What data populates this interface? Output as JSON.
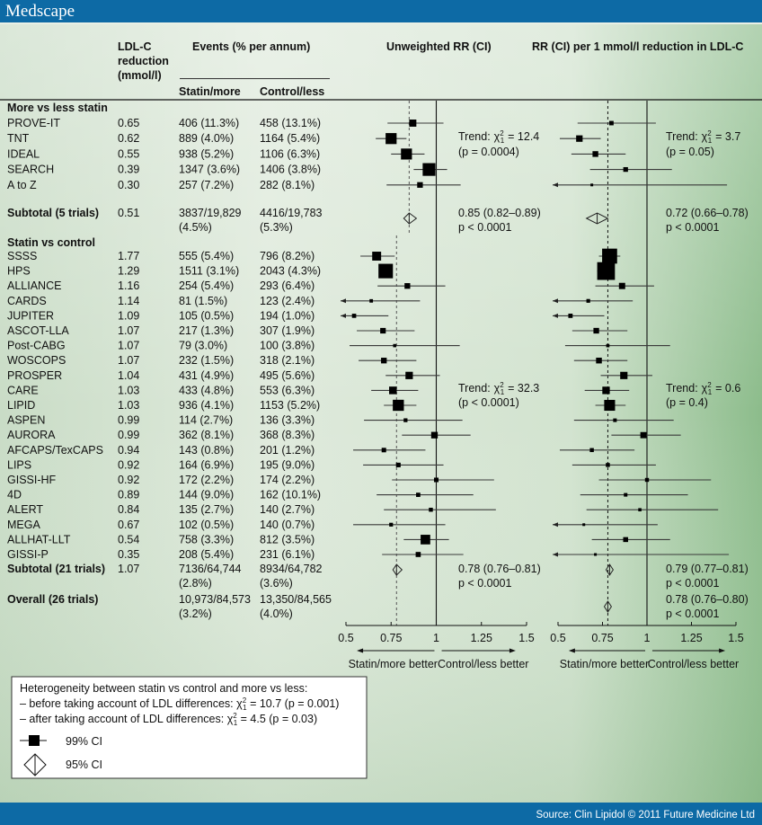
{
  "header": {
    "brand": "Medscape"
  },
  "footer": {
    "source": "Source: Clin Lipidol © 2011 Future Medicine Ltd"
  },
  "colors": {
    "brand_bar": "#0d6aa5",
    "background_light": "#e2ecdf",
    "background_dark": "#8fbd8e",
    "marker": "#000000"
  },
  "columns": {
    "ldl_line1": "LDL-C",
    "ldl_line2": "reduction",
    "ldl_line3": "(mmol/l)",
    "events": "Events (% per annum)",
    "statin": "Statin/more",
    "control": "Control/less",
    "unweighted": "Unweighted RR (CI)",
    "per_mmol": "RR (CI) per 1 mmol/l reduction in LDL-C"
  },
  "chart_data": {
    "type": "forest",
    "xlim": [
      0.5,
      1.5
    ],
    "ticks": [
      "0.5",
      "0.75",
      "1",
      "1.25",
      "1.5"
    ],
    "xlabel_left": "Statin/more better",
    "xlabel_right": "Control/less better",
    "reference_lines": {
      "null": 1,
      "unweighted_more_vs_less": 0.85,
      "unweighted_statin_vs_control": 0.78,
      "per_mmol_overall": 0.78
    },
    "groups": [
      {
        "title": "More vs less statin",
        "trials": [
          {
            "name": "PROVE-IT",
            "ldl": "0.65",
            "statin": "406 (11.3%)",
            "control": "458 (13.1%)",
            "rr": [
              0.87,
              0.73,
              1.04
            ],
            "rr_per_mmol": [
              0.8,
              0.61,
              1.05
            ]
          },
          {
            "name": "TNT",
            "ldl": "0.62",
            "statin": "889 (4.0%)",
            "control": "1164 (5.4%)",
            "rr": [
              0.75,
              0.665,
              0.835
            ],
            "rr_per_mmol": [
              0.62,
              0.51,
              0.74
            ]
          },
          {
            "name": "IDEAL",
            "ldl": "0.55",
            "statin": "938 (5.2%)",
            "control": "1106 (6.3%)",
            "rr": [
              0.835,
              0.75,
              0.935
            ],
            "rr_per_mmol": [
              0.71,
              0.575,
              0.88
            ]
          },
          {
            "name": "SEARCH",
            "ldl": "0.39",
            "statin": "1347 (3.6%)",
            "control": "1406 (3.8%)",
            "rr": [
              0.96,
              0.875,
              1.06
            ],
            "rr_per_mmol": [
              0.88,
              0.68,
              1.14
            ]
          },
          {
            "name": "A to Z",
            "ldl": "0.30",
            "statin": "257 (7.2%)",
            "control": "282 (8.1%)",
            "rr": [
              0.91,
              0.725,
              1.135
            ],
            "rr_per_mmol": [
              0.69,
              "<0.5",
              1.45
            ]
          }
        ],
        "trend": {
          "unweighted": {
            "label": "Trend:",
            "symbol": "χ",
            "power": "2",
            "df": "1",
            "value": "= 12.4",
            "p": "(p = 0.0004)"
          },
          "per_mmol": {
            "label": "Trend:",
            "symbol": "χ",
            "power": "2",
            "df": "1",
            "value": "= 3.7",
            "p": "(p = 0.05)"
          }
        },
        "subtotal": {
          "name": "Subtotal (5 trials)",
          "ldl": "0.51",
          "statin": "3837/19,829",
          "statin_pct": "(4.5%)",
          "control": "4416/19,783",
          "control_pct": "(5.3%)",
          "rr": [
            0.85,
            0.82,
            0.89
          ],
          "rr_text": "0.85 (0.82–0.89)",
          "rr_p": "p < 0.0001",
          "rr_per_mmol": [
            0.72,
            0.66,
            0.78
          ],
          "rr_per_mmol_text": "0.72 (0.66–0.78)",
          "rr_per_mmol_p": "p < 0.0001"
        }
      },
      {
        "title": "Statin vs control",
        "trials": [
          {
            "name": "SSSS",
            "ldl": "1.77",
            "statin": "555 (5.4%)",
            "control": "796 (8.2%)",
            "rr": [
              0.67,
              0.58,
              0.77
            ],
            "rr_per_mmol": [
              0.79,
              0.73,
              0.85
            ]
          },
          {
            "name": "HPS",
            "ldl": "1.29",
            "statin": "1511 (3.1%)",
            "control": "2043 (4.3%)",
            "rr": [
              0.72,
              0.687,
              0.753
            ],
            "rr_per_mmol": [
              0.77,
              0.72,
              0.81
            ]
          },
          {
            "name": "ALLIANCE",
            "ldl": "1.16",
            "statin": "254 (5.4%)",
            "control": "293 (6.4%)",
            "rr": [
              0.84,
              0.675,
              1.05
            ],
            "rr_per_mmol": [
              0.86,
              0.71,
              1.04
            ]
          },
          {
            "name": "CARDS",
            "ldl": "1.14",
            "statin": "81 (1.5%)",
            "control": "123 (2.4%)",
            "rr": [
              0.64,
              "<0.5",
              0.91
            ],
            "rr_per_mmol": [
              0.67,
              "<0.5",
              0.92
            ]
          },
          {
            "name": "JUPITER",
            "ldl": "1.09",
            "statin": "105 (0.5%)",
            "control": "194 (1.0%)",
            "rr": [
              0.545,
              "<0.5",
              0.735
            ],
            "rr_per_mmol": [
              0.57,
              "<0.5",
              0.76
            ]
          },
          {
            "name": "ASCOT-LLA",
            "ldl": "1.07",
            "statin": "217 (1.3%)",
            "control": "307 (1.9%)",
            "rr": [
              0.705,
              0.56,
              0.88
            ],
            "rr_per_mmol": [
              0.715,
              0.58,
              0.89
            ]
          },
          {
            "name": "Post-CABG",
            "ldl": "1.07",
            "statin": "79 (3.0%)",
            "control": "100 (3.8%)",
            "rr": [
              0.77,
              0.52,
              1.13
            ],
            "rr_per_mmol": [
              0.78,
              0.54,
              1.13
            ]
          },
          {
            "name": "WOSCOPS",
            "ldl": "1.07",
            "statin": "232 (1.5%)",
            "control": "318 (2.1%)",
            "rr": [
              0.71,
              0.57,
              0.89
            ],
            "rr_per_mmol": [
              0.73,
              0.59,
              0.89
            ]
          },
          {
            "name": "PROSPER",
            "ldl": "1.04",
            "statin": "431 (4.9%)",
            "control": "495 (5.6%)",
            "rr": [
              0.85,
              0.72,
              1.02
            ],
            "rr_per_mmol": [
              0.87,
              0.74,
              1.03
            ]
          },
          {
            "name": "CARE",
            "ldl": "1.03",
            "statin": "433 (4.8%)",
            "control": "553 (6.3%)",
            "rr": [
              0.76,
              0.64,
              0.9
            ],
            "rr_per_mmol": [
              0.77,
              0.65,
              0.9
            ]
          },
          {
            "name": "LIPID",
            "ldl": "1.03",
            "statin": "936 (4.1%)",
            "control": "1153 (5.2%)",
            "rr": [
              0.79,
              0.71,
              0.89
            ],
            "rr_per_mmol": [
              0.79,
              0.71,
              0.88
            ]
          },
          {
            "name": "ASPEN",
            "ldl": "0.99",
            "statin": "114 (2.7%)",
            "control": "136 (3.3%)",
            "rr": [
              0.83,
              0.6,
              1.145
            ],
            "rr_per_mmol": [
              0.82,
              0.59,
              1.15
            ]
          },
          {
            "name": "AURORA",
            "ldl": "0.99",
            "statin": "362 (8.1%)",
            "control": "368 (8.3%)",
            "rr": [
              0.99,
              0.81,
              1.19
            ],
            "rr_per_mmol": [
              0.98,
              0.8,
              1.19
            ]
          },
          {
            "name": "AFCAPS/TexCAPS",
            "ldl": "0.94",
            "statin": "143 (0.8%)",
            "control": "201 (1.2%)",
            "rr": [
              0.71,
              0.54,
              0.94
            ],
            "rr_per_mmol": [
              0.69,
              0.51,
              0.93
            ]
          },
          {
            "name": "LIPS",
            "ldl": "0.92",
            "statin": "164 (6.9%)",
            "control": "195 (9.0%)",
            "rr": [
              0.79,
              0.595,
              1.04
            ],
            "rr_per_mmol": [
              0.78,
              0.58,
              1.05
            ]
          },
          {
            "name": "GISSI-HF",
            "ldl": "0.92",
            "statin": "172 (2.2%)",
            "control": "174 (2.2%)",
            "rr": [
              1.0,
              0.755,
              1.32
            ],
            "rr_per_mmol": [
              1.0,
              0.73,
              1.36
            ]
          },
          {
            "name": "4D",
            "ldl": "0.89",
            "statin": "144 (9.0%)",
            "control": "162 (10.1%)",
            "rr": [
              0.9,
              0.67,
              1.205
            ],
            "rr_per_mmol": [
              0.88,
              0.625,
              1.23
            ]
          },
          {
            "name": "ALERT",
            "ldl": "0.84",
            "statin": "135 (2.7%)",
            "control": "140 (2.7%)",
            "rr": [
              0.97,
              0.71,
              1.33
            ],
            "rr_per_mmol": [
              0.96,
              0.66,
              1.4
            ]
          },
          {
            "name": "MEGA",
            "ldl": "0.67",
            "statin": "102 (0.5%)",
            "control": "140 (0.7%)",
            "rr": [
              0.75,
              0.54,
              1.05
            ],
            "rr_per_mmol": [
              0.645,
              "<0.5",
              1.06
            ]
          },
          {
            "name": "ALLHAT-LLT",
            "ldl": "0.54",
            "statin": "758 (3.3%)",
            "control": "812 (3.5%)",
            "rr": [
              0.94,
              0.82,
              1.07
            ],
            "rr_per_mmol": [
              0.88,
              0.69,
              1.13
            ]
          },
          {
            "name": "GISSI-P",
            "ldl": "0.35",
            "statin": "208 (5.4%)",
            "control": "231 (6.1%)",
            "rr": [
              0.9,
              0.7,
              1.15
            ],
            "rr_per_mmol": [
              0.71,
              "<0.5",
              1.46
            ]
          }
        ],
        "trend": {
          "unweighted": {
            "label": "Trend:",
            "symbol": "χ",
            "power": "2",
            "df": "1",
            "value": "= 32.3",
            "p": "(p < 0.0001)"
          },
          "per_mmol": {
            "label": "Trend:",
            "symbol": "χ",
            "power": "2",
            "df": "1",
            "value": "= 0.6",
            "p": "(p = 0.4)"
          }
        },
        "subtotal": {
          "name": "Subtotal (21 trials)",
          "ldl": "1.07",
          "statin": "7136/64,744",
          "statin_pct": "(2.8%)",
          "control": "8934/64,782",
          "control_pct": "(3.6%)",
          "rr": [
            0.78,
            0.76,
            0.81
          ],
          "rr_text": "0.78 (0.76–0.81)",
          "rr_p": "p < 0.0001",
          "rr_per_mmol": [
            0.79,
            0.77,
            0.81
          ],
          "rr_per_mmol_text": "0.79 (0.77–0.81)",
          "rr_per_mmol_p": "p < 0.0001"
        }
      }
    ],
    "overall": {
      "name": "Overall (26 trials)",
      "statin": "10,973/84,573",
      "statin_pct": "(3.2%)",
      "control": "13,350/84,565",
      "control_pct": "(4.0%)",
      "rr_per_mmol": [
        0.78,
        0.76,
        0.8
      ],
      "rr_per_mmol_text": "0.78 (0.76–0.80)",
      "rr_per_mmol_p": "p < 0.0001"
    },
    "legend": {
      "title": "Heterogeneity between statin vs control and more vs less:",
      "before": {
        "label": "– before taking account of LDL differences: ",
        "symbol": "χ",
        "power": "2",
        "df": "1",
        "value": " = 10.7 (p = 0.001)"
      },
      "after": {
        "label": "– after taking account of LDL differences: ",
        "symbol": "χ",
        "power": "2",
        "df": "1",
        "value": " = 4.5 (p = 0.03)"
      },
      "square": "99% CI",
      "diamond": "95% CI",
      "placement": "bottom-left"
    }
  }
}
